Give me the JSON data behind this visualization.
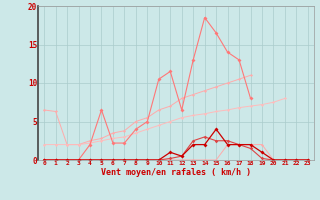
{
  "background_color": "#cce8e8",
  "grid_color": "#aacccc",
  "x_labels": [
    "0",
    "1",
    "2",
    "3",
    "4",
    "5",
    "6",
    "7",
    "8",
    "9",
    "10",
    "11",
    "12",
    "13",
    "14",
    "15",
    "16",
    "17",
    "18",
    "19",
    "20",
    "21",
    "22",
    "23"
  ],
  "xlabel": "Vent moyen/en rafales ( km/h )",
  "ylim": [
    0,
    20
  ],
  "yticks": [
    0,
    5,
    10,
    15,
    20
  ],
  "line_rafales": {
    "y": [
      0,
      0,
      0,
      0,
      2,
      6.5,
      2.2,
      2.2,
      4,
      5,
      10.5,
      11.5,
      6.5,
      13,
      18.5,
      16.5,
      14,
      13,
      8,
      null,
      null,
      null,
      null,
      null
    ],
    "color": "#ff7777",
    "marker": "D",
    "markersize": 2.0,
    "linewidth": 0.8
  },
  "line_trend1": {
    "y": [
      6.5,
      6.3,
      2.0,
      2.0,
      2.5,
      2.8,
      3.5,
      3.8,
      5.0,
      5.5,
      6.5,
      7.0,
      8.0,
      8.5,
      9.0,
      9.5,
      10.0,
      10.5,
      11.0,
      null,
      null,
      null,
      null,
      null
    ],
    "color": "#ffaaaa",
    "marker": "D",
    "markersize": 1.5,
    "linewidth": 0.7
  },
  "line_trend2": {
    "y": [
      2.0,
      2.0,
      2.0,
      2.0,
      2.2,
      2.5,
      2.8,
      3.0,
      3.5,
      4.0,
      4.5,
      5.0,
      5.5,
      5.8,
      6.0,
      6.3,
      6.5,
      6.8,
      7.0,
      7.2,
      7.5,
      8.0,
      null,
      null
    ],
    "color": "#ffbbbb",
    "marker": "D",
    "markersize": 1.5,
    "linewidth": 0.7
  },
  "line_moyen": {
    "y": [
      0,
      0,
      0,
      0,
      0,
      0,
      0,
      0,
      0,
      0,
      0,
      1.0,
      0.5,
      2.0,
      2.0,
      4.0,
      2.0,
      2.0,
      2.0,
      1.0,
      0,
      0,
      0,
      0
    ],
    "color": "#cc0000",
    "marker": "D",
    "markersize": 2.0,
    "linewidth": 0.9
  },
  "line_small": {
    "y": [
      0,
      0,
      0,
      0,
      0,
      0,
      0,
      0,
      0,
      0,
      0,
      0.2,
      0.5,
      2.5,
      3.0,
      2.5,
      2.5,
      2.0,
      1.5,
      0.2,
      0,
      0,
      0,
      0
    ],
    "color": "#dd4444",
    "marker": "D",
    "markersize": 1.8,
    "linewidth": 0.8
  },
  "line_flat": {
    "y": [
      0,
      0,
      0,
      0,
      0,
      0,
      0,
      0,
      0,
      0,
      0,
      0,
      0,
      0,
      0,
      0,
      2.0,
      2.0,
      2.0,
      2.0,
      0,
      0,
      0,
      0
    ],
    "color": "#ffaaaa",
    "marker": "D",
    "markersize": 1.5,
    "linewidth": 0.7
  }
}
